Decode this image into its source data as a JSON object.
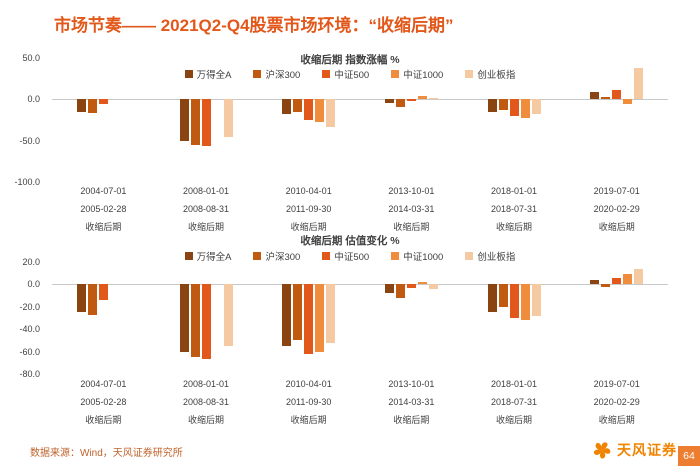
{
  "page": {
    "title": "市场节奏—— 2021Q2-Q4股票市场环境：“收缩后期”",
    "footer": "数据来源：Wind，天风证券研究所",
    "logo_text": "天风证券",
    "page_number": "64",
    "accent_color": "#e2571a",
    "page_number_bg": "#ed7d31"
  },
  "chart_data": [
    {
      "type": "bar",
      "title": "收缩后期 指数涨幅 %",
      "ylim": [
        -100,
        50
      ],
      "yticks": [
        50,
        0,
        -50,
        -100
      ],
      "grid": false,
      "legend_position": "top",
      "categories": [
        [
          "2004-07-01",
          "2005-02-28",
          "收缩后期"
        ],
        [
          "2008-01-01",
          "2008-08-31",
          "收缩后期"
        ],
        [
          "2010-04-01",
          "2011-09-30",
          "收缩后期"
        ],
        [
          "2013-10-01",
          "2014-03-31",
          "收缩后期"
        ],
        [
          "2018-01-01",
          "2018-07-31",
          "收缩后期"
        ],
        [
          "2019-07-01",
          "2020-02-29",
          "收缩后期"
        ]
      ],
      "series": [
        {
          "name": "万得全A",
          "color": "#8a4412",
          "values": [
            -15,
            -50,
            -18,
            -4,
            -15,
            9
          ]
        },
        {
          "name": "沪深300",
          "color": "#c05a11",
          "values": [
            -16,
            -55,
            -15,
            -9,
            -13,
            3
          ]
        },
        {
          "name": "中证500",
          "color": "#e2571a",
          "values": [
            -6,
            -57,
            -25,
            -2,
            -20,
            11
          ]
        },
        {
          "name": "中证1000",
          "color": "#ef8d3c",
          "values": [
            null,
            null,
            -28,
            4,
            -23,
            -6
          ]
        },
        {
          "name": "创业板指",
          "color": "#f5c9a2",
          "values": [
            null,
            -45,
            -33,
            2,
            -18,
            38
          ]
        }
      ]
    },
    {
      "type": "bar",
      "title": "收缩后期 估值变化 %",
      "ylim": [
        -80,
        20
      ],
      "yticks": [
        20,
        0,
        -20,
        -40,
        -60,
        -80
      ],
      "grid": false,
      "legend_position": "top",
      "categories": [
        [
          "2004-07-01",
          "2005-02-28",
          "收缩后期"
        ],
        [
          "2008-01-01",
          "2008-08-31",
          "收缩后期"
        ],
        [
          "2010-04-01",
          "2011-09-30",
          "收缩后期"
        ],
        [
          "2013-10-01",
          "2014-03-31",
          "收缩后期"
        ],
        [
          "2018-01-01",
          "2018-07-31",
          "收缩后期"
        ],
        [
          "2019-07-01",
          "2020-02-29",
          "收缩后期"
        ]
      ],
      "series": [
        {
          "name": "万得全A",
          "color": "#8a4412",
          "values": [
            -25,
            -60,
            -55,
            -8,
            -25,
            4
          ]
        },
        {
          "name": "沪深300",
          "color": "#c05a11",
          "values": [
            -27,
            -65,
            -50,
            -12,
            -20,
            -2
          ]
        },
        {
          "name": "中证500",
          "color": "#e2571a",
          "values": [
            -14,
            -67,
            -62,
            -3,
            -30,
            6
          ]
        },
        {
          "name": "中证1000",
          "color": "#ef8d3c",
          "values": [
            null,
            null,
            -60,
            2,
            -32,
            9
          ]
        },
        {
          "name": "创业板指",
          "color": "#f5c9a2",
          "values": [
            null,
            -55,
            -52,
            -4,
            -28,
            14
          ]
        }
      ]
    }
  ]
}
